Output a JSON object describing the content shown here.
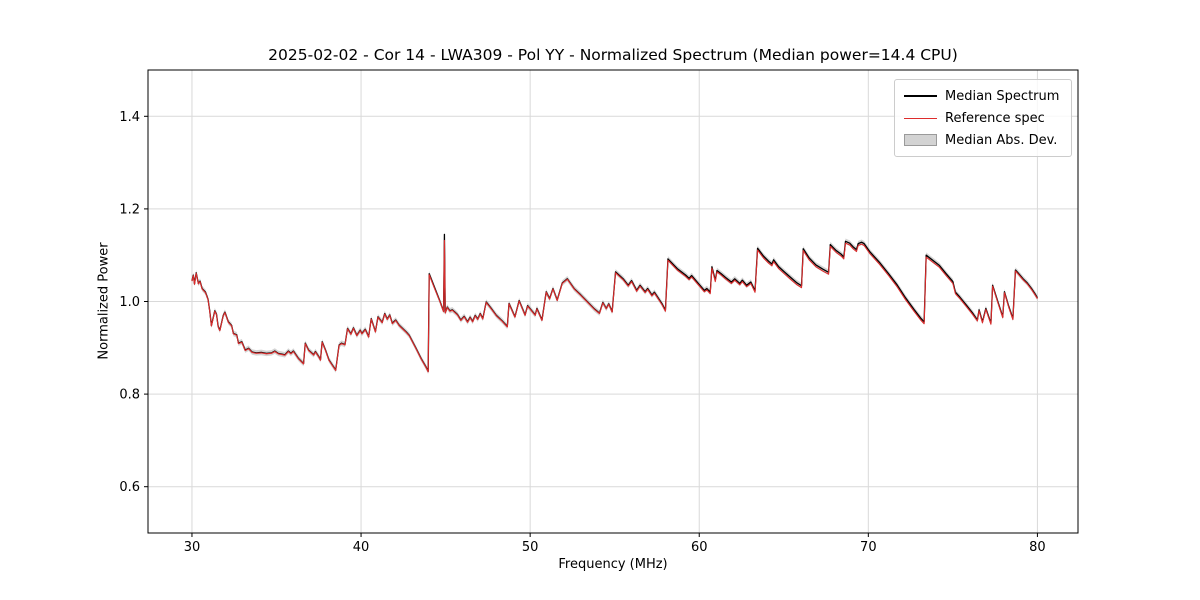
{
  "chart_data": {
    "type": "line",
    "title": "2025-02-02 - Cor 14 - LWA309 - Pol YY - Normalized Spectrum (Median power=14.4 CPU)",
    "xlabel": "Frequency (MHz)",
    "ylabel": "Normalized Power",
    "xlim": [
      27.4,
      82.4
    ],
    "ylim": [
      0.5,
      1.5
    ],
    "xticks": [
      "30",
      "40",
      "50",
      "60",
      "70",
      "80"
    ],
    "xtick_values": [
      30,
      40,
      50,
      60,
      70,
      80
    ],
    "yticks": [
      "0.6",
      "0.8",
      "1.0",
      "1.2",
      "1.4"
    ],
    "ytick_values": [
      0.6,
      0.8,
      1.0,
      1.2,
      1.4
    ],
    "grid": true,
    "grid_color": "#d9d9d9",
    "legend_position": "upper right",
    "legend": [
      {
        "label": "Median Spectrum",
        "type": "line",
        "color": "#000000"
      },
      {
        "label": "Reference spec",
        "type": "line",
        "color": "#dd2b2b"
      },
      {
        "label": "Median Abs. Dev.",
        "type": "patch",
        "color": "#d3d3d3"
      }
    ],
    "mad_halfwidth": 0.006,
    "mad_band_color": "#b0b0b0",
    "series_names": [
      "Median Spectrum",
      "Reference spec"
    ],
    "points_format": [
      "freq_mhz",
      "median",
      "reference"
    ],
    "points": [
      [
        30.0,
        1.045,
        1.044
      ],
      [
        30.08,
        1.057,
        1.056
      ],
      [
        30.15,
        1.038,
        1.037
      ],
      [
        30.25,
        1.062,
        1.061
      ],
      [
        30.38,
        1.039,
        1.038
      ],
      [
        30.48,
        1.044,
        1.043
      ],
      [
        30.6,
        1.028,
        1.027
      ],
      [
        30.8,
        1.02,
        1.019
      ],
      [
        30.95,
        1.005,
        1.004
      ],
      [
        31.05,
        0.98,
        0.979
      ],
      [
        31.15,
        0.948,
        0.947
      ],
      [
        31.35,
        0.98,
        0.979
      ],
      [
        31.45,
        0.973,
        0.972
      ],
      [
        31.55,
        0.946,
        0.945
      ],
      [
        31.65,
        0.938,
        0.937
      ],
      [
        31.85,
        0.97,
        0.969
      ],
      [
        31.95,
        0.977,
        0.976
      ],
      [
        32.15,
        0.956,
        0.955
      ],
      [
        32.35,
        0.948,
        0.947
      ],
      [
        32.45,
        0.931,
        0.93
      ],
      [
        32.65,
        0.928,
        0.927
      ],
      [
        32.75,
        0.91,
        0.909
      ],
      [
        32.95,
        0.913,
        0.912
      ],
      [
        33.15,
        0.895,
        0.894
      ],
      [
        33.35,
        0.899,
        0.898
      ],
      [
        33.55,
        0.891,
        0.89
      ],
      [
        33.8,
        0.889,
        0.888
      ],
      [
        34.1,
        0.89,
        0.889
      ],
      [
        34.4,
        0.888,
        0.887
      ],
      [
        34.7,
        0.889,
        0.888
      ],
      [
        34.9,
        0.893,
        0.892
      ],
      [
        35.1,
        0.888,
        0.887
      ],
      [
        35.5,
        0.885,
        0.884
      ],
      [
        35.7,
        0.893,
        0.892
      ],
      [
        35.85,
        0.888,
        0.887
      ],
      [
        36.0,
        0.893,
        0.892
      ],
      [
        36.3,
        0.877,
        0.876
      ],
      [
        36.6,
        0.866,
        0.865
      ],
      [
        36.7,
        0.91,
        0.909
      ],
      [
        36.9,
        0.895,
        0.894
      ],
      [
        37.2,
        0.885,
        0.884
      ],
      [
        37.3,
        0.892,
        0.891
      ],
      [
        37.5,
        0.881,
        0.88
      ],
      [
        37.6,
        0.874,
        0.873
      ],
      [
        37.7,
        0.913,
        0.912
      ],
      [
        37.9,
        0.895,
        0.894
      ],
      [
        38.1,
        0.874,
        0.873
      ],
      [
        38.3,
        0.863,
        0.862
      ],
      [
        38.5,
        0.852,
        0.851
      ],
      [
        38.7,
        0.906,
        0.905
      ],
      [
        38.85,
        0.91,
        0.909
      ],
      [
        39.05,
        0.907,
        0.906
      ],
      [
        39.2,
        0.942,
        0.941
      ],
      [
        39.4,
        0.93,
        0.929
      ],
      [
        39.55,
        0.943,
        0.942
      ],
      [
        39.75,
        0.927,
        0.926
      ],
      [
        39.95,
        0.938,
        0.937
      ],
      [
        40.05,
        0.931,
        0.93
      ],
      [
        40.25,
        0.94,
        0.939
      ],
      [
        40.45,
        0.924,
        0.923
      ],
      [
        40.6,
        0.963,
        0.962
      ],
      [
        40.85,
        0.935,
        0.934
      ],
      [
        41.0,
        0.967,
        0.966
      ],
      [
        41.25,
        0.955,
        0.954
      ],
      [
        41.4,
        0.974,
        0.973
      ],
      [
        41.55,
        0.962,
        0.961
      ],
      [
        41.7,
        0.971,
        0.97
      ],
      [
        41.85,
        0.953,
        0.952
      ],
      [
        42.05,
        0.96,
        0.959
      ],
      [
        42.25,
        0.949,
        0.948
      ],
      [
        42.45,
        0.942,
        0.941
      ],
      [
        42.65,
        0.935,
        0.934
      ],
      [
        42.85,
        0.927,
        0.926
      ],
      [
        43.25,
        0.899,
        0.898
      ],
      [
        43.55,
        0.877,
        0.876
      ],
      [
        43.85,
        0.858,
        0.857
      ],
      [
        43.97,
        0.849,
        0.848
      ],
      [
        44.03,
        1.06,
        1.058
      ],
      [
        44.35,
        1.03,
        1.028
      ],
      [
        44.65,
        1.002,
        1.001
      ],
      [
        44.88,
        0.979,
        0.978
      ],
      [
        44.93,
        1.145,
        1.132
      ],
      [
        44.98,
        0.976,
        0.975
      ],
      [
        45.1,
        0.988,
        0.987
      ],
      [
        45.25,
        0.98,
        0.979
      ],
      [
        45.4,
        0.982,
        0.981
      ],
      [
        45.55,
        0.977,
        0.976
      ],
      [
        45.7,
        0.972,
        0.971
      ],
      [
        45.9,
        0.96,
        0.959
      ],
      [
        46.1,
        0.968,
        0.967
      ],
      [
        46.3,
        0.956,
        0.955
      ],
      [
        46.45,
        0.966,
        0.965
      ],
      [
        46.6,
        0.957,
        0.956
      ],
      [
        46.75,
        0.97,
        0.969
      ],
      [
        46.9,
        0.962,
        0.961
      ],
      [
        47.05,
        0.974,
        0.973
      ],
      [
        47.2,
        0.963,
        0.962
      ],
      [
        47.4,
        0.999,
        0.998
      ],
      [
        47.7,
        0.985,
        0.984
      ],
      [
        48.0,
        0.97,
        0.969
      ],
      [
        48.35,
        0.958,
        0.957
      ],
      [
        48.65,
        0.946,
        0.945
      ],
      [
        48.75,
        0.996,
        0.995
      ],
      [
        49.1,
        0.967,
        0.966
      ],
      [
        49.35,
        1.002,
        1.001
      ],
      [
        49.7,
        0.971,
        0.97
      ],
      [
        49.85,
        0.991,
        0.99
      ],
      [
        50.1,
        0.98,
        0.979
      ],
      [
        50.3,
        0.971,
        0.97
      ],
      [
        50.4,
        0.985,
        0.984
      ],
      [
        50.7,
        0.96,
        0.959
      ],
      [
        50.95,
        1.021,
        1.02
      ],
      [
        51.15,
        1.006,
        1.005
      ],
      [
        51.35,
        1.028,
        1.027
      ],
      [
        51.6,
        1.003,
        1.002
      ],
      [
        51.9,
        1.04,
        1.039
      ],
      [
        52.2,
        1.049,
        1.048
      ],
      [
        52.6,
        1.028,
        1.027
      ],
      [
        53.0,
        1.014,
        1.013
      ],
      [
        53.4,
        0.999,
        0.998
      ],
      [
        53.8,
        0.984,
        0.983
      ],
      [
        54.1,
        0.975,
        0.974
      ],
      [
        54.3,
        0.998,
        0.997
      ],
      [
        54.5,
        0.985,
        0.984
      ],
      [
        54.65,
        0.995,
        0.994
      ],
      [
        54.85,
        0.978,
        0.977
      ],
      [
        55.05,
        1.064,
        1.062
      ],
      [
        55.5,
        1.049,
        1.047
      ],
      [
        55.8,
        1.035,
        1.033
      ],
      [
        56.0,
        1.045,
        1.043
      ],
      [
        56.3,
        1.024,
        1.022
      ],
      [
        56.5,
        1.035,
        1.033
      ],
      [
        56.8,
        1.021,
        1.019
      ],
      [
        56.95,
        1.028,
        1.026
      ],
      [
        57.2,
        1.014,
        1.012
      ],
      [
        57.35,
        1.02,
        1.018
      ],
      [
        57.55,
        1.009,
        1.007
      ],
      [
        57.8,
        0.995,
        0.993
      ],
      [
        58.0,
        0.981,
        0.979
      ],
      [
        58.15,
        1.092,
        1.089
      ],
      [
        58.7,
        1.071,
        1.068
      ],
      [
        59.2,
        1.057,
        1.054
      ],
      [
        59.4,
        1.05,
        1.047
      ],
      [
        59.55,
        1.056,
        1.053
      ],
      [
        59.9,
        1.041,
        1.038
      ],
      [
        60.3,
        1.024,
        1.021
      ],
      [
        60.45,
        1.028,
        1.025
      ],
      [
        60.65,
        1.02,
        1.017
      ],
      [
        60.75,
        1.075,
        1.072
      ],
      [
        60.95,
        1.046,
        1.043
      ],
      [
        61.05,
        1.067,
        1.064
      ],
      [
        61.3,
        1.06,
        1.057
      ],
      [
        61.55,
        1.052,
        1.049
      ],
      [
        61.9,
        1.042,
        1.039
      ],
      [
        62.1,
        1.049,
        1.046
      ],
      [
        62.4,
        1.039,
        1.036
      ],
      [
        62.55,
        1.046,
        1.043
      ],
      [
        62.8,
        1.035,
        1.032
      ],
      [
        63.05,
        1.042,
        1.039
      ],
      [
        63.3,
        1.023,
        1.02
      ],
      [
        63.45,
        1.115,
        1.111
      ],
      [
        63.8,
        1.098,
        1.094
      ],
      [
        64.1,
        1.087,
        1.083
      ],
      [
        64.3,
        1.081,
        1.077
      ],
      [
        64.4,
        1.09,
        1.086
      ],
      [
        64.7,
        1.075,
        1.071
      ],
      [
        65.0,
        1.065,
        1.061
      ],
      [
        65.4,
        1.052,
        1.048
      ],
      [
        65.75,
        1.041,
        1.037
      ],
      [
        66.05,
        1.034,
        1.03
      ],
      [
        66.15,
        1.114,
        1.11
      ],
      [
        66.5,
        1.094,
        1.09
      ],
      [
        66.9,
        1.079,
        1.075
      ],
      [
        67.3,
        1.07,
        1.066
      ],
      [
        67.65,
        1.063,
        1.059
      ],
      [
        67.75,
        1.123,
        1.119
      ],
      [
        68.1,
        1.11,
        1.106
      ],
      [
        68.4,
        1.102,
        1.098
      ],
      [
        68.55,
        1.096,
        1.092
      ],
      [
        68.65,
        1.13,
        1.126
      ],
      [
        68.9,
        1.126,
        1.122
      ],
      [
        69.1,
        1.118,
        1.114
      ],
      [
        69.3,
        1.112,
        1.108
      ],
      [
        69.4,
        1.125,
        1.121
      ],
      [
        69.6,
        1.128,
        1.124
      ],
      [
        69.75,
        1.125,
        1.121
      ],
      [
        70.1,
        1.107,
        1.103
      ],
      [
        70.65,
        1.085,
        1.081
      ],
      [
        71.2,
        1.06,
        1.056
      ],
      [
        71.7,
        1.036,
        1.032
      ],
      [
        72.2,
        1.008,
        1.004
      ],
      [
        72.7,
        0.983,
        0.979
      ],
      [
        73.1,
        0.964,
        0.96
      ],
      [
        73.3,
        0.956,
        0.952
      ],
      [
        73.42,
        1.1,
        1.096
      ],
      [
        74.2,
        1.078,
        1.074
      ],
      [
        74.6,
        1.06,
        1.056
      ],
      [
        75.0,
        1.043,
        1.039
      ],
      [
        75.15,
        1.02,
        1.017
      ],
      [
        75.4,
        1.01,
        1.007
      ],
      [
        75.8,
        0.992,
        0.989
      ],
      [
        76.15,
        0.976,
        0.973
      ],
      [
        76.45,
        0.96,
        0.958
      ],
      [
        76.55,
        0.982,
        0.98
      ],
      [
        76.75,
        0.956,
        0.954
      ],
      [
        76.95,
        0.985,
        0.983
      ],
      [
        77.25,
        0.953,
        0.951
      ],
      [
        77.35,
        1.035,
        1.033
      ],
      [
        77.7,
        0.995,
        0.993
      ],
      [
        77.95,
        0.967,
        0.965
      ],
      [
        78.05,
        1.021,
        1.019
      ],
      [
        78.3,
        0.99,
        0.988
      ],
      [
        78.55,
        0.963,
        0.961
      ],
      [
        78.7,
        1.068,
        1.066
      ],
      [
        78.85,
        1.062,
        1.06
      ],
      [
        79.15,
        1.049,
        1.047
      ],
      [
        79.4,
        1.04,
        1.038
      ],
      [
        79.65,
        1.028,
        1.026
      ],
      [
        79.85,
        1.017,
        1.015
      ],
      [
        80.0,
        1.008,
        1.006
      ]
    ]
  }
}
